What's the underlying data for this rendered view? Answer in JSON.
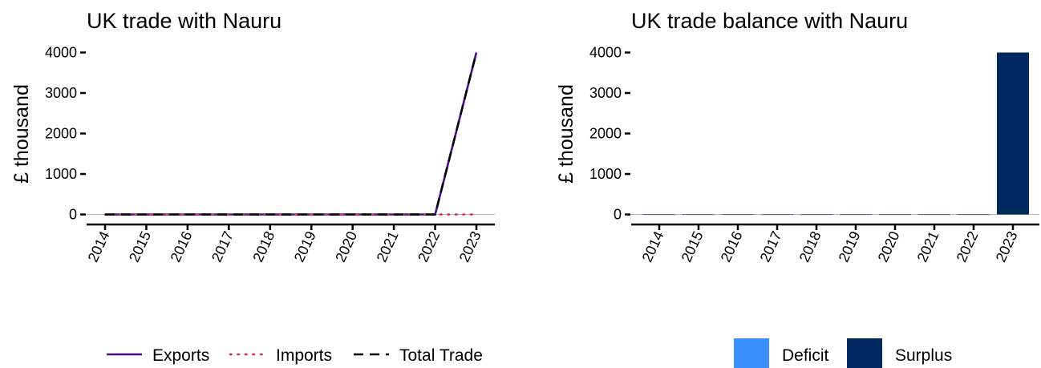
{
  "chart_data": [
    {
      "type": "line",
      "title": "UK trade with Nauru",
      "xlabel": "",
      "ylabel": "£ thousand",
      "x": [
        "2014",
        "2015",
        "2016",
        "2017",
        "2018",
        "2019",
        "2020",
        "2021",
        "2022",
        "2023"
      ],
      "ylim": [
        0,
        4000
      ],
      "yticks": [
        0,
        1000,
        2000,
        3000,
        4000
      ],
      "grid": false,
      "legend_position": "bottom",
      "series": [
        {
          "name": "Exports",
          "color": "#4B0C8A",
          "dash": "solid",
          "values": [
            0,
            0,
            0,
            0,
            0,
            0,
            0,
            0,
            0,
            4000
          ]
        },
        {
          "name": "Imports",
          "color": "#E2264D",
          "dash": "dotted",
          "values": [
            0,
            0,
            0,
            0,
            0,
            0,
            0,
            0,
            0,
            0
          ]
        },
        {
          "name": "Total Trade",
          "color": "#000000",
          "dash": "dashed",
          "values": [
            0,
            0,
            0,
            0,
            0,
            0,
            0,
            0,
            0,
            4000
          ]
        }
      ]
    },
    {
      "type": "bar",
      "title": "UK trade balance with Nauru",
      "xlabel": "",
      "ylabel": "£ thousand",
      "categories": [
        "2014",
        "2015",
        "2016",
        "2017",
        "2018",
        "2019",
        "2020",
        "2021",
        "2022",
        "2023"
      ],
      "values": [
        0,
        0,
        0,
        0,
        0,
        0,
        0,
        0,
        0,
        4000
      ],
      "ylim": [
        0,
        4000
      ],
      "yticks": [
        0,
        1000,
        2000,
        3000,
        4000
      ],
      "grid": false,
      "legend_position": "bottom",
      "legend": [
        {
          "name": "Deficit",
          "color": "#3A8FFF"
        },
        {
          "name": "Surplus",
          "color": "#002A5F"
        }
      ]
    }
  ]
}
